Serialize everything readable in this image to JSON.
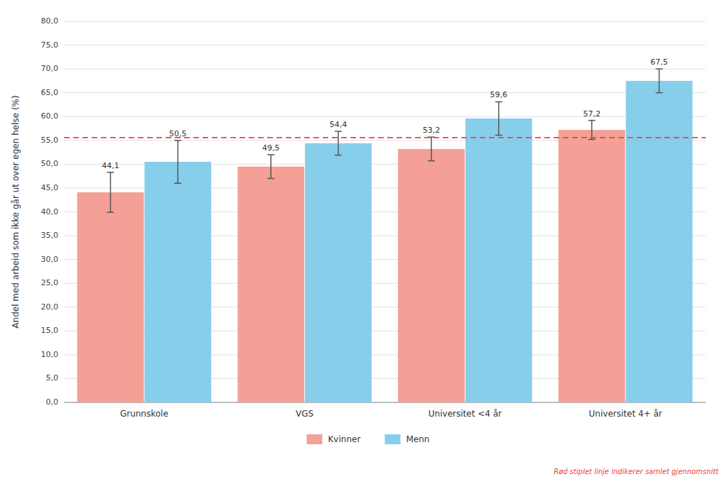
{
  "chart_data": {
    "type": "bar",
    "categories": [
      "Grunnskole",
      "VGS",
      "Universitet <4 år",
      "Universitet 4+ år"
    ],
    "series": [
      {
        "name": "Kvinner",
        "color": "#F4A096",
        "values": [
          44.1,
          49.5,
          53.2,
          57.2
        ],
        "errors": [
          4.2,
          2.5,
          2.5,
          2.0
        ],
        "value_labels": [
          "44,1",
          "49,5",
          "53,2",
          "57,2"
        ]
      },
      {
        "name": "Menn",
        "color": "#87CEEB",
        "values": [
          50.5,
          54.4,
          59.6,
          67.5
        ],
        "errors": [
          4.5,
          2.5,
          3.5,
          2.5
        ],
        "value_labels": [
          "50,5",
          "54,4",
          "59,6",
          "67,5"
        ]
      }
    ],
    "ylabel": "Andel med arbeid som ikke går ut over egen helse (%)",
    "ylim": [
      0,
      80
    ],
    "yticks": [
      {
        "value": 0,
        "label": "0,0"
      },
      {
        "value": 5.0,
        "label": "5,0"
      },
      {
        "value": 10.0,
        "label": "10,0"
      },
      {
        "value": 15.0,
        "label": "15,0"
      },
      {
        "value": 20.0,
        "label": "20,0"
      },
      {
        "value": 25.0,
        "label": "25,0"
      },
      {
        "value": 30.0,
        "label": "30,0"
      },
      {
        "value": 35.0,
        "label": "35,0"
      },
      {
        "value": 40.0,
        "label": "40,0"
      },
      {
        "value": 45.0,
        "label": "45,0"
      },
      {
        "value": 50.0,
        "label": "50,0"
      },
      {
        "value": 55.0,
        "label": "55,0"
      },
      {
        "value": 60.0,
        "label": "60,0"
      },
      {
        "value": 65.0,
        "label": "65,0"
      },
      {
        "value": 70.0,
        "label": "70,0"
      },
      {
        "value": 75.0,
        "label": "75,0"
      },
      {
        "value": 80.0,
        "label": "80,0"
      }
    ],
    "grid": true,
    "legend": "bottom",
    "data_labels": true,
    "reference_line": {
      "value": 55.6,
      "color": "#E8453C"
    },
    "note": {
      "text": "Rød stiplet linje indikerer samlet gjennomsnitt",
      "color": "#E8453C"
    }
  }
}
